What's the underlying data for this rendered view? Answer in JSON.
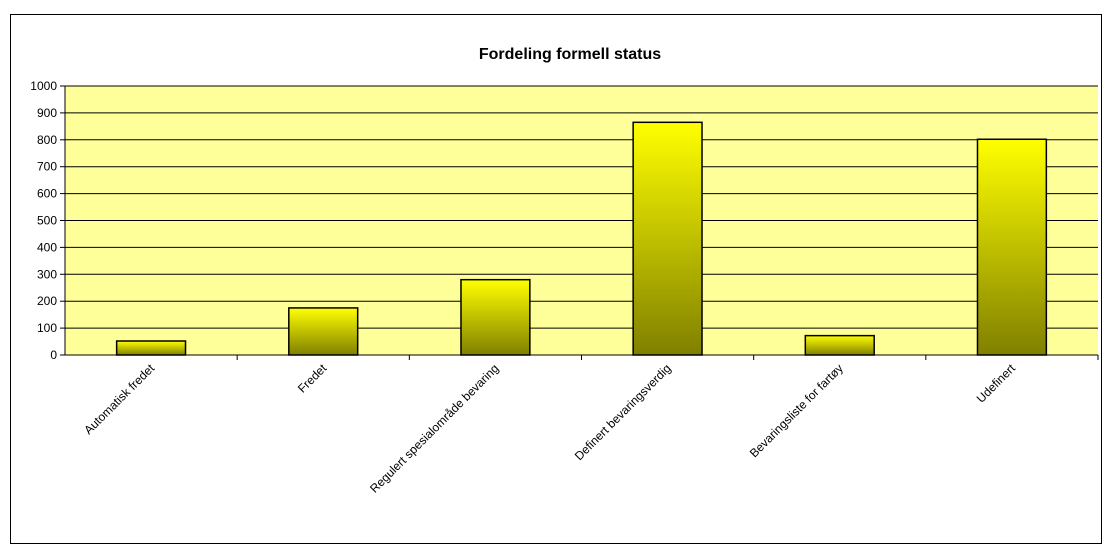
{
  "chart_data": {
    "type": "bar",
    "title": "Fordeling formell status",
    "categories": [
      "Automatisk fredet",
      "Fredet",
      "Regulert spesialområde bevaring",
      "Definert bevaringsverdig",
      "Bevaringsliste for fartøy",
      "Udefinert"
    ],
    "values": [
      52,
      175,
      280,
      865,
      72,
      802
    ],
    "yticks": [
      "0",
      "100",
      "200",
      "300",
      "400",
      "500",
      "600",
      "700",
      "800",
      "900",
      "1000"
    ],
    "ylim": [
      0,
      1000
    ],
    "grid": true,
    "legend": "none",
    "xlabel": "",
    "ylabel": ""
  },
  "colors": {
    "plot_background": "#FFFF99",
    "bar_top": "#FFFF00",
    "bar_bottom": "#808000",
    "gridline": "#000000"
  }
}
